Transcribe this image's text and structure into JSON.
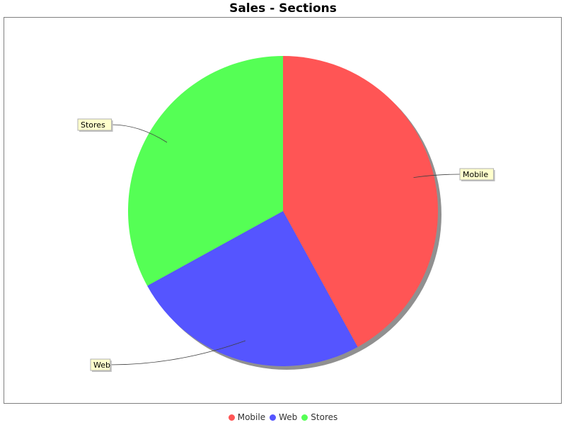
{
  "chart_data": {
    "type": "pie",
    "title": "Sales - Sections",
    "categories": [
      "Mobile",
      "Web",
      "Stores"
    ],
    "values": [
      42,
      25,
      33
    ],
    "colors": [
      "#ff5555",
      "#5555ff",
      "#55ff55"
    ],
    "legend_position": "bottom",
    "grid": false
  }
}
